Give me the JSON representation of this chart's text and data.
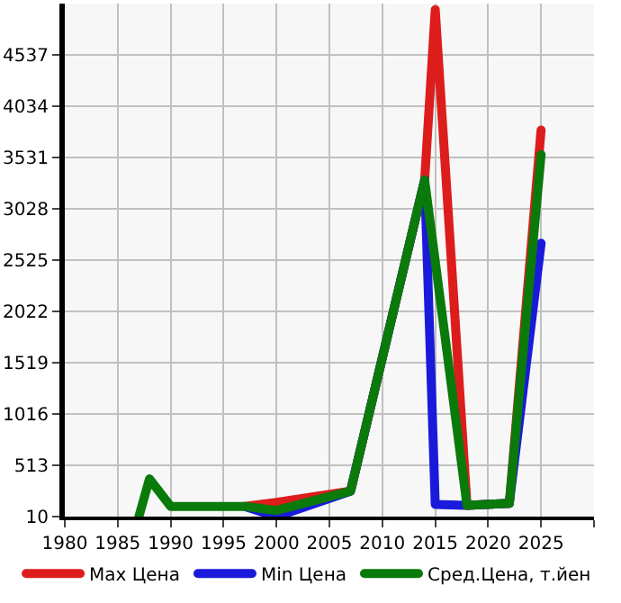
{
  "chart_data": {
    "type": "line",
    "series": [
      {
        "name": "Max Цена",
        "color": "#dd1c1c",
        "x": [
          1997,
          2000,
          2007,
          2014,
          2015,
          2018,
          2022,
          2025
        ],
        "values": [
          110,
          150,
          260,
          3310,
          4980,
          120,
          140,
          3800
        ]
      },
      {
        "name": "Min Цена",
        "color": "#1a1adb",
        "x": [
          1997,
          2000,
          2007,
          2014,
          2015,
          2018,
          2022,
          2025
        ],
        "values": [
          110,
          10,
          260,
          3310,
          130,
          120,
          140,
          2690
        ]
      },
      {
        "name": "Сред.Цена, т.йен",
        "color": "#0a7a0a",
        "x": [
          1987,
          1988,
          1990,
          1997,
          2000,
          2007,
          2014,
          2018,
          2022,
          2025
        ],
        "values": [
          10,
          380,
          110,
          110,
          70,
          260,
          3310,
          120,
          140,
          3560
        ]
      }
    ],
    "xlim": [
      1980,
      2030
    ],
    "xticks": [
      1980,
      1985,
      1990,
      1995,
      2000,
      2005,
      2010,
      2015,
      2020,
      2025,
      {
        "value": 2030,
        "label": null
      }
    ],
    "ylim": [
      10,
      5040
    ],
    "yticks": [
      10,
      513,
      1016,
      1519,
      2022,
      2525,
      3028,
      3531,
      4034,
      4537
    ],
    "grid": true,
    "legend": "bottom",
    "marker": "none",
    "line_style": "solid"
  }
}
